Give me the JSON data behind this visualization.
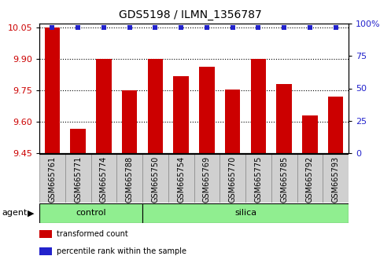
{
  "title": "GDS5198 / ILMN_1356787",
  "samples": [
    "GSM665761",
    "GSM665771",
    "GSM665774",
    "GSM665788",
    "GSM665750",
    "GSM665754",
    "GSM665769",
    "GSM665770",
    "GSM665775",
    "GSM665785",
    "GSM665792",
    "GSM665793"
  ],
  "bar_values": [
    10.05,
    9.565,
    9.9,
    9.75,
    9.9,
    9.82,
    9.865,
    9.755,
    9.9,
    9.78,
    9.63,
    9.72
  ],
  "percentile_values": [
    97,
    97,
    97,
    97,
    97,
    97,
    97,
    97,
    97,
    97,
    97,
    97
  ],
  "ylim_left": [
    9.45,
    10.07
  ],
  "ylim_right": [
    0,
    100
  ],
  "yticks_left": [
    9.45,
    9.6,
    9.75,
    9.9,
    10.05
  ],
  "yticks_right": [
    0,
    25,
    50,
    75,
    100
  ],
  "ytick_right_labels": [
    "0",
    "25",
    "50",
    "75",
    "100%"
  ],
  "bar_color": "#cc0000",
  "dot_color": "#2222cc",
  "bar_bottom": 9.45,
  "control_count": 4,
  "silica_count": 8,
  "group_color": "#90ee90",
  "cell_color": "#d0d0d0",
  "cell_edge_color": "#888888",
  "grid_linestyle": ":",
  "grid_color": "#000000",
  "grid_linewidth": 0.8,
  "tick_label_color_left": "#cc0000",
  "tick_label_color_right": "#2222cc",
  "legend_items": [
    {
      "color": "#cc0000",
      "label": "transformed count"
    },
    {
      "color": "#2222cc",
      "label": "percentile rank within the sample"
    }
  ],
  "bar_width": 0.6,
  "dot_size": 4,
  "title_fontsize": 10,
  "axis_fontsize": 8,
  "label_fontsize": 7,
  "legend_fontsize": 7
}
